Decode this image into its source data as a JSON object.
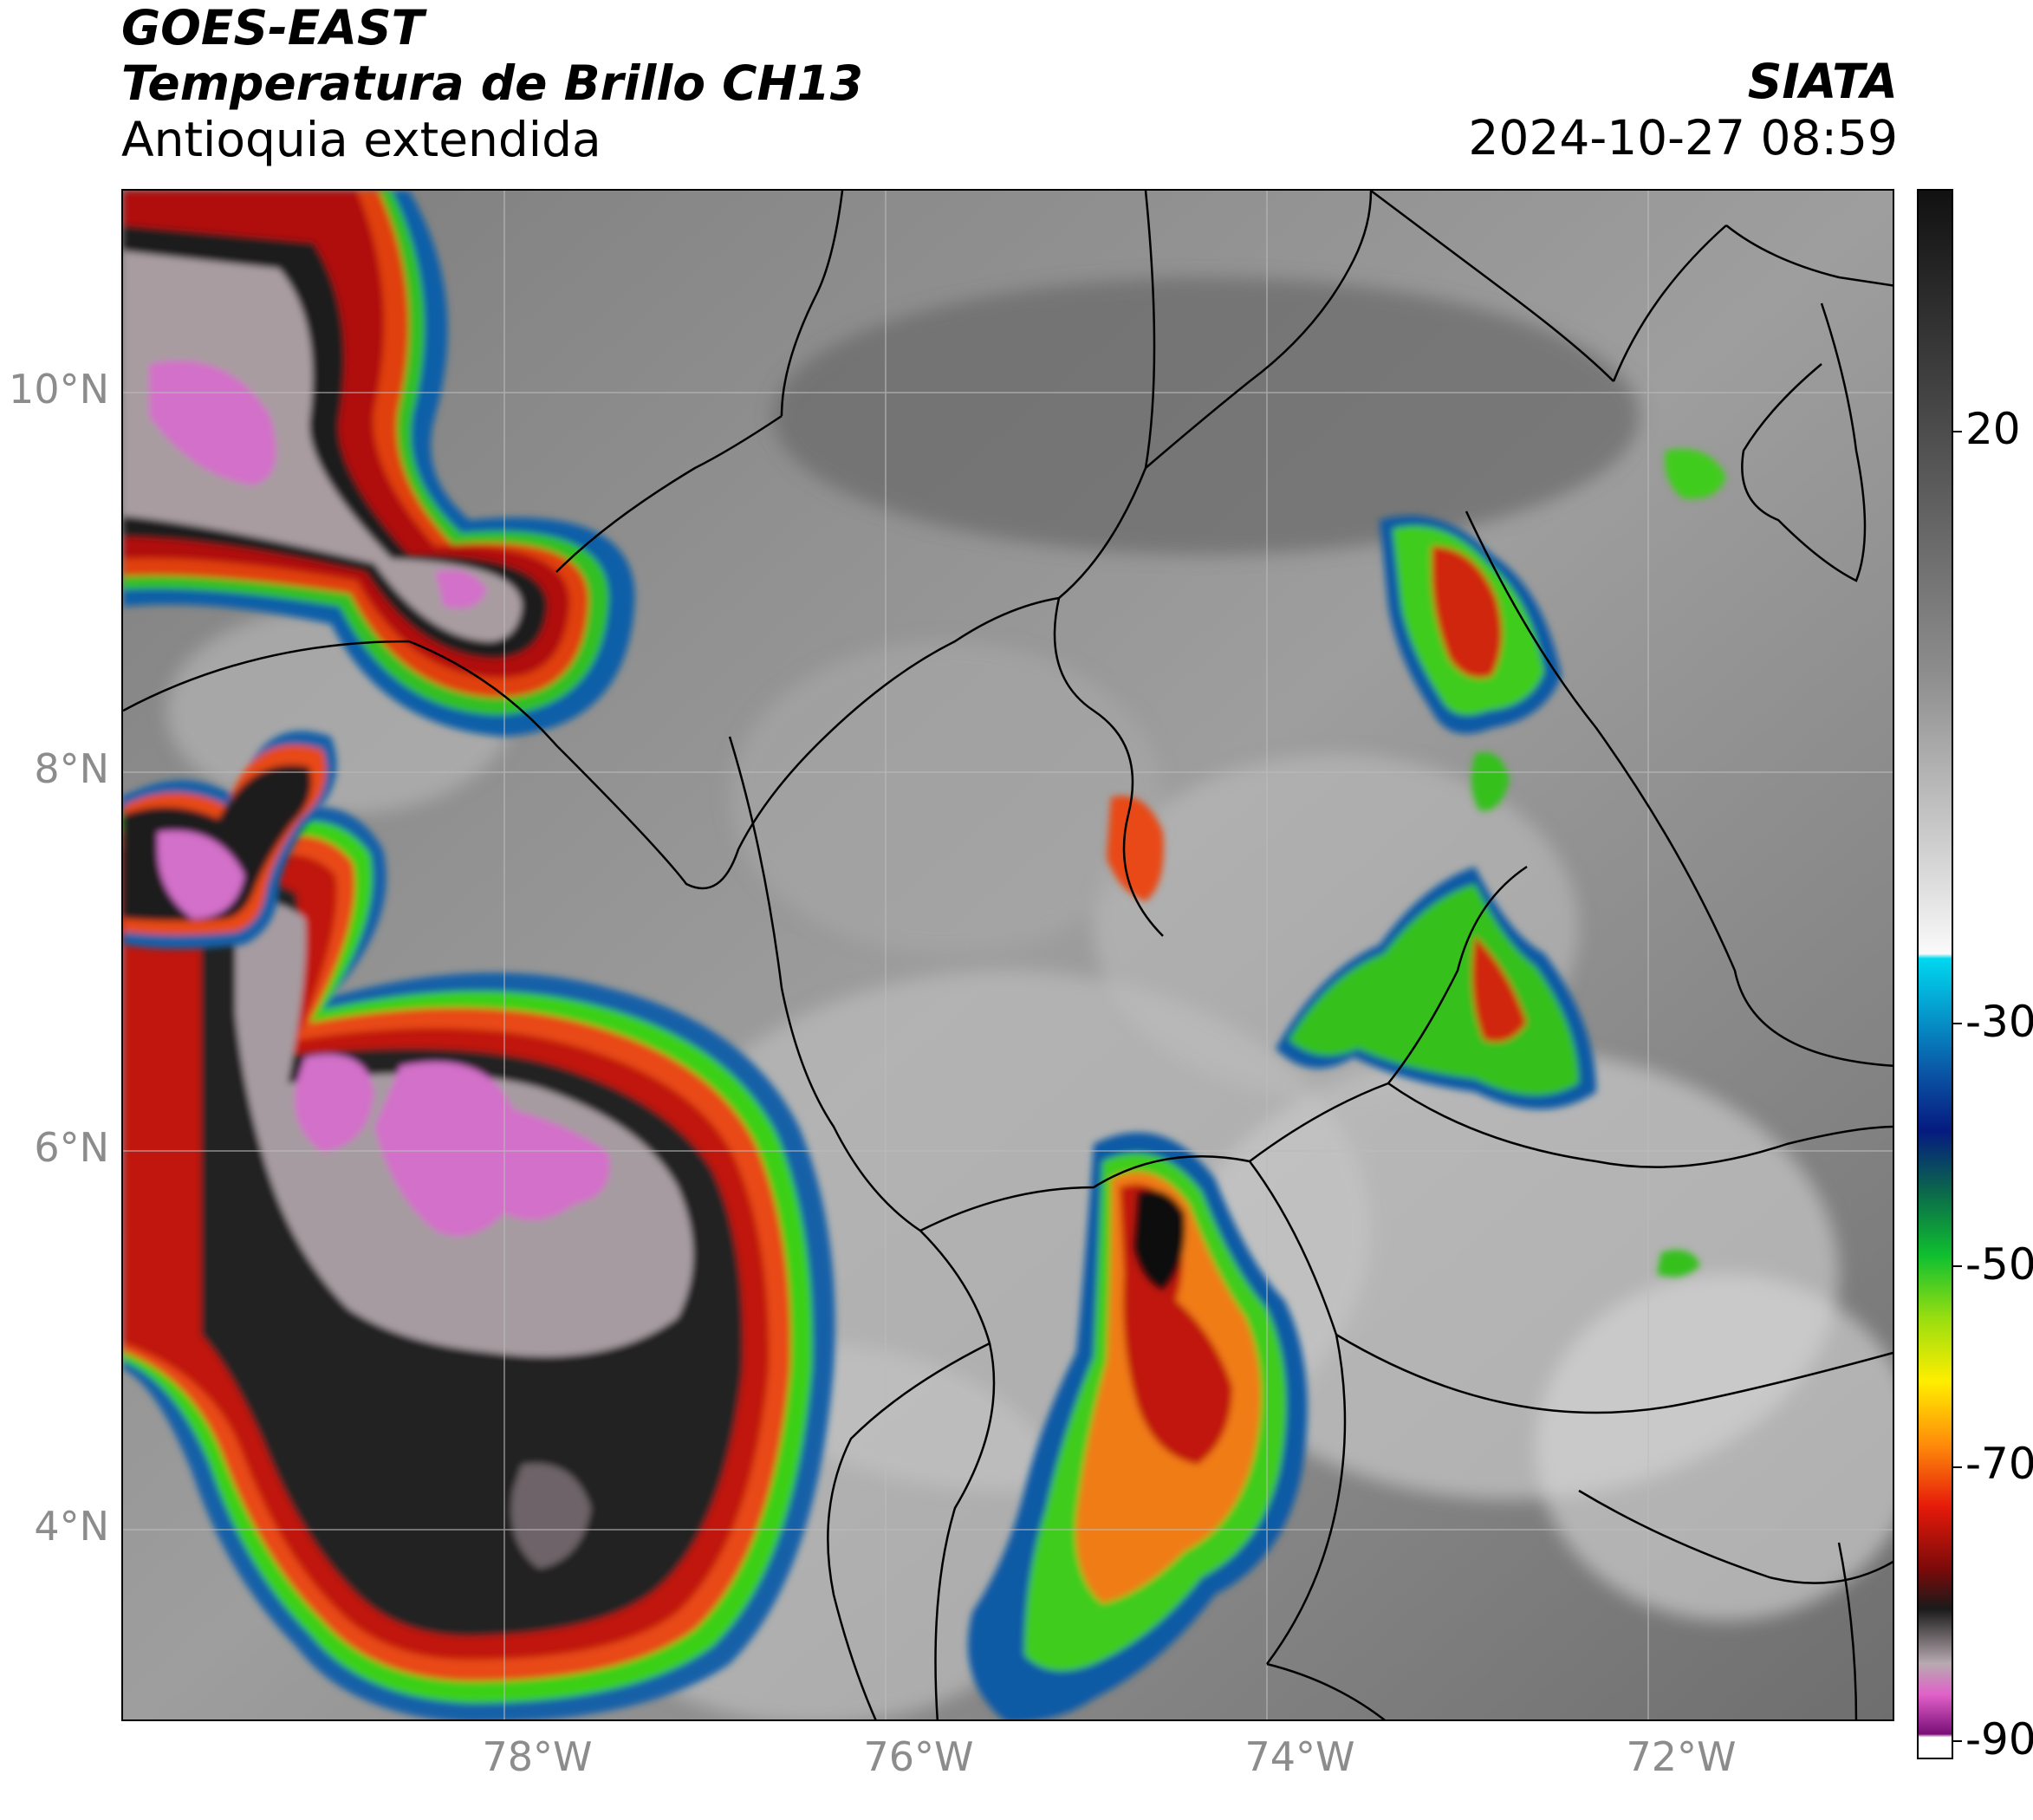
{
  "header": {
    "satellite": "GOES-EAST",
    "product": "Temperatura de Brillo CH13",
    "region": "Antioquia extendida",
    "agency": "SIATA",
    "datetime": "2024-10-27 08:59"
  },
  "map": {
    "lat_labels": [
      "10°N",
      "8°N",
      "6°N",
      "4°N"
    ],
    "lon_labels": [
      "78°W",
      "76°W",
      "74°W",
      "72°W"
    ],
    "lon_range": [
      -79.9,
      -70.6
    ],
    "lat_range": [
      2.8,
      11.0
    ],
    "gridlines": true
  },
  "colorbar": {
    "labels": [
      "20",
      "-30",
      "-50",
      "-70",
      "-90"
    ],
    "range": [
      -90,
      35
    ]
  }
}
